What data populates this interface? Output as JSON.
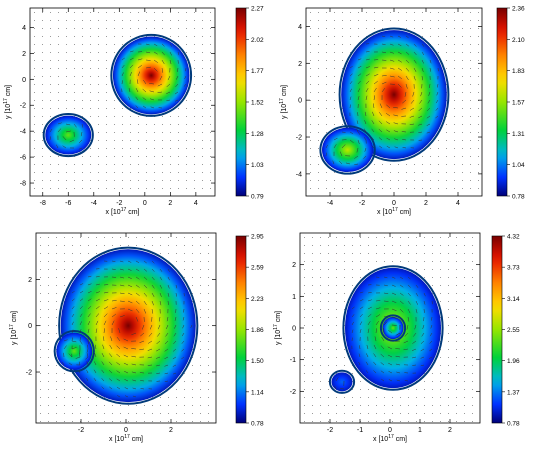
{
  "chart_data": [
    {
      "type": "heatmap",
      "panel": "top-left",
      "xlabel": "x [10",
      "xlabel_exp": "17",
      "xlabel_unit": " cm]",
      "ylabel": "y [10",
      "ylabel_exp": "17",
      "ylabel_unit": " cm]",
      "xlim": [
        -9,
        5.5
      ],
      "ylim": [
        -9,
        5.5
      ],
      "xticks": [
        -8,
        -6,
        -4,
        -2,
        0,
        2,
        4
      ],
      "yticks": [
        -8,
        -6,
        -4,
        -2,
        0,
        2,
        4
      ],
      "colorbar": {
        "min": 0.79,
        "max": 2.27,
        "ticks": [
          "2.27",
          "2.02",
          "1.77",
          "1.52",
          "1.28",
          "1.03",
          "0.79"
        ]
      },
      "blobs": [
        {
          "cx": 0.5,
          "cy": 0.3,
          "rx": 3.0,
          "ry": 3.0,
          "peak": 1.0
        },
        {
          "cx": -6.0,
          "cy": -4.3,
          "rx": 1.8,
          "ry": 1.5,
          "peak": 0.45
        }
      ]
    },
    {
      "type": "heatmap",
      "panel": "top-right",
      "xlabel": "x [10",
      "xlabel_exp": "17",
      "xlabel_unit": " cm]",
      "ylabel": "y [10",
      "ylabel_exp": "17",
      "ylabel_unit": " cm]",
      "xlim": [
        -5.5,
        5.5
      ],
      "ylim": [
        -5.2,
        5.0
      ],
      "xticks": [
        -4,
        -2,
        0,
        2,
        4
      ],
      "yticks": [
        -4,
        -2,
        0,
        2,
        4
      ],
      "colorbar": {
        "min": 0.78,
        "max": 2.36,
        "ticks": [
          "2.36",
          "2.10",
          "1.83",
          "1.57",
          "1.31",
          "1.04",
          "0.78"
        ]
      },
      "blobs": [
        {
          "cx": 0.0,
          "cy": 0.3,
          "rx": 3.3,
          "ry": 3.5,
          "peak": 1.0
        },
        {
          "cx": -2.9,
          "cy": -2.7,
          "rx": 1.6,
          "ry": 1.2,
          "peak": 0.55
        }
      ]
    },
    {
      "type": "heatmap",
      "panel": "bottom-left",
      "xlabel": "x [10",
      "xlabel_exp": "17",
      "xlabel_unit": " cm]",
      "ylabel": "y [10",
      "ylabel_exp": "17",
      "ylabel_unit": " cm]",
      "xlim": [
        -4.0,
        4.0
      ],
      "ylim": [
        -4.2,
        4.0
      ],
      "xticks": [
        -2,
        0,
        2
      ],
      "yticks": [
        -2,
        0,
        2
      ],
      "colorbar": {
        "min": 0.78,
        "max": 2.95,
        "ticks": [
          "2.95",
          "2.59",
          "2.23",
          "1.86",
          "1.50",
          "1.14",
          "0.78"
        ]
      },
      "blobs": [
        {
          "cx": 0.1,
          "cy": 0.0,
          "rx": 3.0,
          "ry": 3.3,
          "peak": 1.0
        },
        {
          "cx": -2.3,
          "cy": -1.1,
          "rx": 0.8,
          "ry": 0.8,
          "peak": 0.45
        }
      ]
    },
    {
      "type": "heatmap",
      "panel": "bottom-right",
      "xlabel": "x [10",
      "xlabel_exp": "17",
      "xlabel_unit": " cm]",
      "ylabel": "y [10",
      "ylabel_exp": "17",
      "ylabel_unit": " cm]",
      "xlim": [
        -3.0,
        3.0
      ],
      "ylim": [
        -3.0,
        3.0
      ],
      "xticks": [
        -2,
        -1,
        0,
        1,
        2
      ],
      "yticks": [
        -2,
        -1,
        0,
        1,
        2
      ],
      "colorbar": {
        "min": 0.78,
        "max": 4.32,
        "ticks": [
          "4.32",
          "3.73",
          "3.14",
          "2.55",
          "1.96",
          "1.37",
          "0.78"
        ]
      },
      "blobs": [
        {
          "cx": 0.1,
          "cy": 0.0,
          "rx": 1.6,
          "ry": 1.9,
          "peak": 0.55
        },
        {
          "cx": -1.6,
          "cy": -1.7,
          "rx": 0.35,
          "ry": 0.3,
          "peak": 0.15
        },
        {
          "cx": 0.1,
          "cy": 0.0,
          "rx": 0.35,
          "ry": 0.35,
          "peak": 0.45
        }
      ]
    }
  ]
}
